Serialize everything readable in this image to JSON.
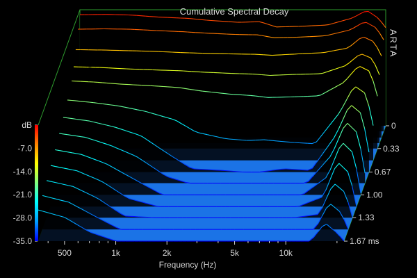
{
  "chart_data": {
    "type": "area",
    "title": "Cumulative Spectral Decay",
    "watermark": "ARTA",
    "xlabel": "Frequency (Hz)",
    "ylabel": "dB",
    "x_scale": "log",
    "xlim": [
      350,
      22000
    ],
    "ylim": [
      -35,
      0
    ],
    "x_ticks": [
      {
        "v": 500,
        "label": "500"
      },
      {
        "v": 1000,
        "label": "1k"
      },
      {
        "v": 2000,
        "label": "2k"
      },
      {
        "v": 5000,
        "label": "5k"
      },
      {
        "v": 10000,
        "label": "10k"
      }
    ],
    "y_ticks": [
      {
        "v": 0,
        "label": "dB"
      },
      {
        "v": -7,
        "label": "-7.0"
      },
      {
        "v": -14,
        "label": "-14.0"
      },
      {
        "v": -21,
        "label": "-21.0"
      },
      {
        "v": -28,
        "label": "-28.0"
      },
      {
        "v": -35,
        "label": "-35.0"
      }
    ],
    "z_ticks": [
      {
        "v": 0,
        "label": "0"
      },
      {
        "v": 0.33,
        "label": "0.33"
      },
      {
        "v": 0.67,
        "label": "0.67"
      },
      {
        "v": 1.0,
        "label": "1.00"
      },
      {
        "v": 1.33,
        "label": "1.33"
      },
      {
        "v": 1.67,
        "label": "1.67 ms"
      }
    ],
    "zlim": [
      0,
      1.67
    ],
    "z_unit": "ms",
    "colormap": [
      "#0000ff",
      "#00a0ff",
      "#00ffff",
      "#80ff80",
      "#ffff00",
      "#ff8000",
      "#ff0000"
    ],
    "floor_color": "#1e7fff",
    "frame_color": "#2e9e2e",
    "x": [
      350,
      500,
      700,
      1000,
      1500,
      2000,
      3000,
      4000,
      5000,
      7000,
      10000,
      14000,
      17000,
      20000,
      22000
    ],
    "series": [
      {
        "t": 0.0,
        "values": [
          -1.5,
          -1.4,
          -1.6,
          -2.2,
          -2.6,
          -3.2,
          -3.8,
          -3.6,
          -5.2,
          -5.0,
          -4.6,
          -2.5,
          -0.2,
          -2.6,
          -5.4
        ]
      },
      {
        "t": 0.08,
        "values": [
          -4.2,
          -4.1,
          -4.2,
          -4.6,
          -5.0,
          -5.4,
          -5.8,
          -5.9,
          -6.8,
          -6.6,
          -6.2,
          -4.4,
          -1.9,
          -3.9,
          -7.4
        ]
      },
      {
        "t": 0.17,
        "values": [
          -8.5,
          -8.6,
          -8.8,
          -9.0,
          -9.4,
          -9.6,
          -9.8,
          -9.9,
          -10.2,
          -9.8,
          -9.4,
          -8.0,
          -4.5,
          -6.2,
          -10.4
        ]
      },
      {
        "t": 0.25,
        "values": [
          -12.0,
          -12.2,
          -12.6,
          -12.9,
          -13.2,
          -13.6,
          -14.0,
          -14.2,
          -14.6,
          -14.3,
          -14.1,
          -11.6,
          -8.0,
          -9.5,
          -14.4
        ]
      },
      {
        "t": 0.33,
        "values": [
          -14.6,
          -15.0,
          -15.6,
          -16.0,
          -16.6,
          -17.6,
          -18.6,
          -19.0,
          -19.6,
          -19.4,
          -19.1,
          -15.0,
          -10.0,
          -11.8,
          -19.2
        ]
      },
      {
        "t": 0.5,
        "values": [
          -16.8,
          -17.6,
          -18.6,
          -20.2,
          -22.8,
          -26.5,
          -28.5,
          -29.0,
          -28.8,
          -29.5,
          -30.0,
          -20.5,
          -12.5,
          -15.0,
          -24.5
        ]
      },
      {
        "t": 0.67,
        "values": [
          -18.5,
          -19.6,
          -21.4,
          -24.0,
          -30.0,
          -34.0,
          -34.5,
          -35.0,
          -35.0,
          -34.0,
          -34.5,
          -24.0,
          -14.5,
          -17.5,
          -29.0
        ]
      },
      {
        "t": 0.83,
        "values": [
          -20.0,
          -21.2,
          -23.6,
          -27.0,
          -33.0,
          -35.0,
          -35.0,
          -35.0,
          -35.0,
          -35.0,
          -35.0,
          -26.5,
          -16.5,
          -20.0,
          -32.0
        ]
      },
      {
        "t": 1.0,
        "values": [
          -21.4,
          -22.8,
          -25.6,
          -30.0,
          -35.0,
          -35.0,
          -35.0,
          -35.0,
          -35.0,
          -35.0,
          -35.0,
          -29.5,
          -19.0,
          -22.5,
          -34.5
        ]
      },
      {
        "t": 1.17,
        "values": [
          -22.6,
          -24.2,
          -27.4,
          -32.5,
          -35.0,
          -35.0,
          -35.0,
          -35.0,
          -35.0,
          -35.0,
          -35.0,
          -32.0,
          -21.5,
          -25.0,
          -35.0
        ]
      },
      {
        "t": 1.33,
        "values": [
          -23.8,
          -25.6,
          -29.2,
          -34.5,
          -35.0,
          -35.0,
          -35.0,
          -35.0,
          -35.0,
          -35.0,
          -35.0,
          -34.0,
          -24.5,
          -27.5,
          -35.0
        ]
      },
      {
        "t": 1.5,
        "values": [
          -24.8,
          -26.8,
          -30.8,
          -35.0,
          -35.0,
          -35.0,
          -35.0,
          -35.0,
          -35.0,
          -35.0,
          -35.0,
          -35.0,
          -27.0,
          -30.0,
          -35.0
        ]
      },
      {
        "t": 1.67,
        "values": [
          -25.6,
          -27.8,
          -32.2,
          -35.0,
          -35.0,
          -35.0,
          -35.0,
          -35.0,
          -35.0,
          -35.0,
          -35.0,
          -35.0,
          -29.5,
          -32.5,
          -35.0
        ]
      }
    ]
  }
}
